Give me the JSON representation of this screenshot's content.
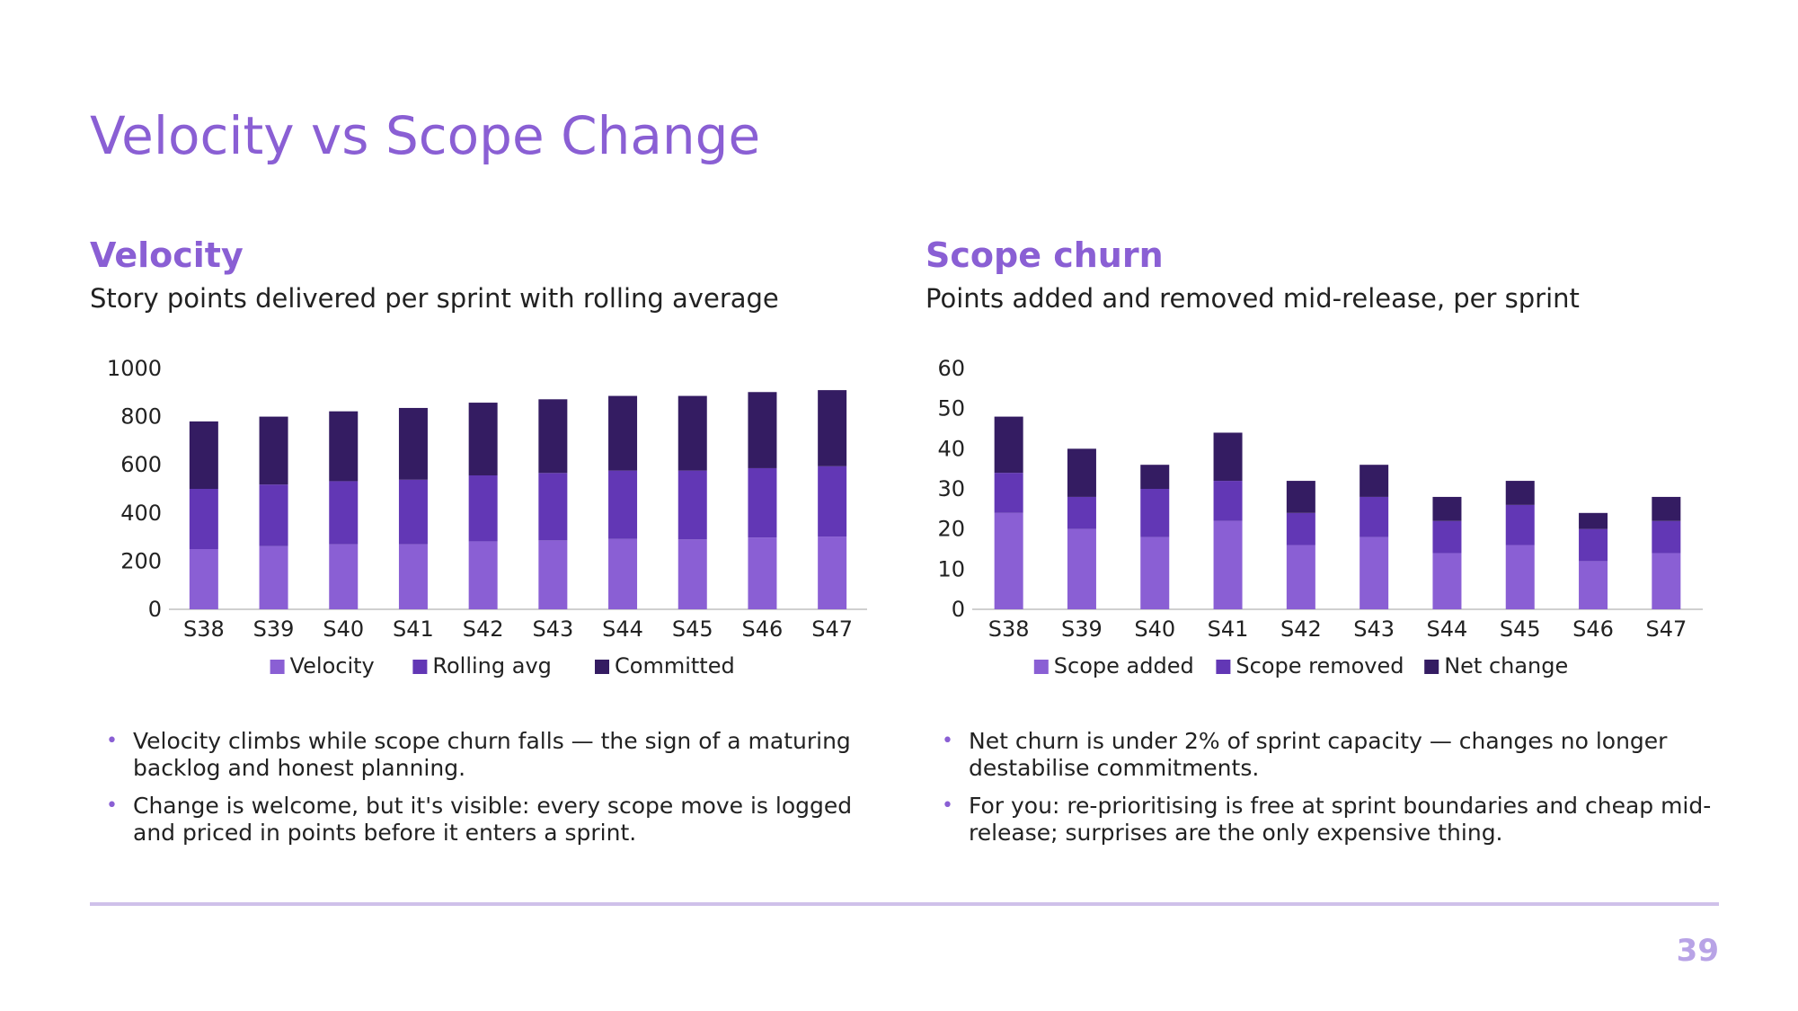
{
  "slide": {
    "title": "Velocity vs Scope Change",
    "page_number": "39"
  },
  "colors": {
    "accent": "#8a5fd4",
    "series1": "#8a5fd4",
    "series2": "#6237b5",
    "series3": "#341c62",
    "rule": "#cfc1ea",
    "page_number": "#b8a3e6"
  },
  "left": {
    "title": "Velocity",
    "subtitle": "Story points delivered per sprint with rolling average",
    "bullets": [
      "Velocity climbs while scope churn falls — the sign of a maturing backlog and honest planning.",
      "Change is welcome, but it's visible: every scope move is logged and priced in points before it enters a sprint."
    ]
  },
  "right": {
    "title": "Scope churn",
    "subtitle": "Points added and removed mid-release, per sprint",
    "bullets": [
      "Net churn is under 2% of sprint capacity — changes no longer destabilise commitments.",
      "For you: re-prioritising is free at sprint boundaries and cheap mid-release; surprises are the only expensive thing."
    ]
  },
  "chart_data": [
    {
      "type": "bar",
      "stacked": true,
      "categories": [
        "S38",
        "S39",
        "S40",
        "S41",
        "S42",
        "S43",
        "S44",
        "S45",
        "S46",
        "S47"
      ],
      "series": [
        {
          "name": "Velocity",
          "values": [
            250,
            262,
            270,
            270,
            282,
            286,
            292,
            290,
            298,
            302
          ]
        },
        {
          "name": "Rolling avg",
          "values": [
            250,
            256,
            262,
            268,
            274,
            280,
            284,
            286,
            288,
            292
          ]
        },
        {
          "name": "Committed",
          "values": [
            280,
            282,
            290,
            298,
            302,
            306,
            310,
            310,
            316,
            316
          ]
        }
      ],
      "ylim": [
        0,
        1000
      ],
      "yticks": [
        0,
        200,
        400,
        600,
        800,
        1000
      ],
      "legend": "bottom",
      "grid": false
    },
    {
      "type": "bar",
      "stacked": true,
      "categories": [
        "S38",
        "S39",
        "S40",
        "S41",
        "S42",
        "S43",
        "S44",
        "S45",
        "S46",
        "S47"
      ],
      "series": [
        {
          "name": "Scope added",
          "values": [
            24,
            20,
            18,
            22,
            16,
            18,
            14,
            16,
            12,
            14
          ]
        },
        {
          "name": "Scope removed",
          "values": [
            10,
            8,
            12,
            10,
            8,
            10,
            8,
            10,
            8,
            8
          ]
        },
        {
          "name": "Net change",
          "values": [
            14,
            12,
            6,
            12,
            8,
            8,
            6,
            6,
            4,
            6
          ]
        }
      ],
      "ylim": [
        0,
        60
      ],
      "yticks": [
        0,
        10,
        20,
        30,
        40,
        50,
        60
      ],
      "legend": "bottom",
      "grid": false
    }
  ]
}
